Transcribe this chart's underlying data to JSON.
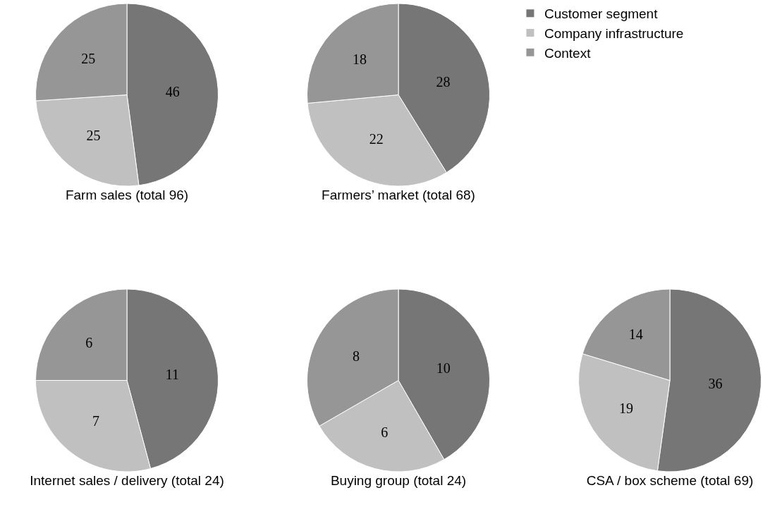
{
  "chart_data": [
    {
      "type": "pie",
      "title": "Farm sales (total 96)",
      "categories": [
        "Customer segment",
        "Company infrastructure",
        "Context"
      ],
      "values": [
        46,
        25,
        25
      ],
      "colors": [
        "#767676",
        "#c0c0c0",
        "#969696"
      ],
      "data_labels": true,
      "legend": "top right"
    },
    {
      "type": "pie",
      "title": "Farmers’ market (total 68)",
      "categories": [
        null,
        null,
        null
      ],
      "values": [
        28,
        22,
        18
      ],
      "colors": [
        "#767676",
        "#c0c0c0",
        "#969696"
      ],
      "data_labels": true
    },
    {
      "type": "pie",
      "title": "Internet sales / delivery (total 24)",
      "categories": [
        null,
        null,
        null
      ],
      "values": [
        11,
        7,
        6
      ],
      "colors": [
        "#767676",
        "#c0c0c0",
        "#969696"
      ],
      "data_labels": true
    },
    {
      "type": "pie",
      "title": "Buying group (total 24)",
      "categories": [
        null,
        null,
        null
      ],
      "values": [
        10,
        6,
        8
      ],
      "colors": [
        "#767676",
        "#c0c0c0",
        "#969696"
      ],
      "data_labels": true
    },
    {
      "type": "pie",
      "title": "CSA / box scheme (total 69)",
      "categories": [
        null,
        null,
        null
      ],
      "values": [
        36,
        19,
        14
      ],
      "colors": [
        "#767676",
        "#c0c0c0",
        "#969696"
      ],
      "data_labels": true
    }
  ]
}
